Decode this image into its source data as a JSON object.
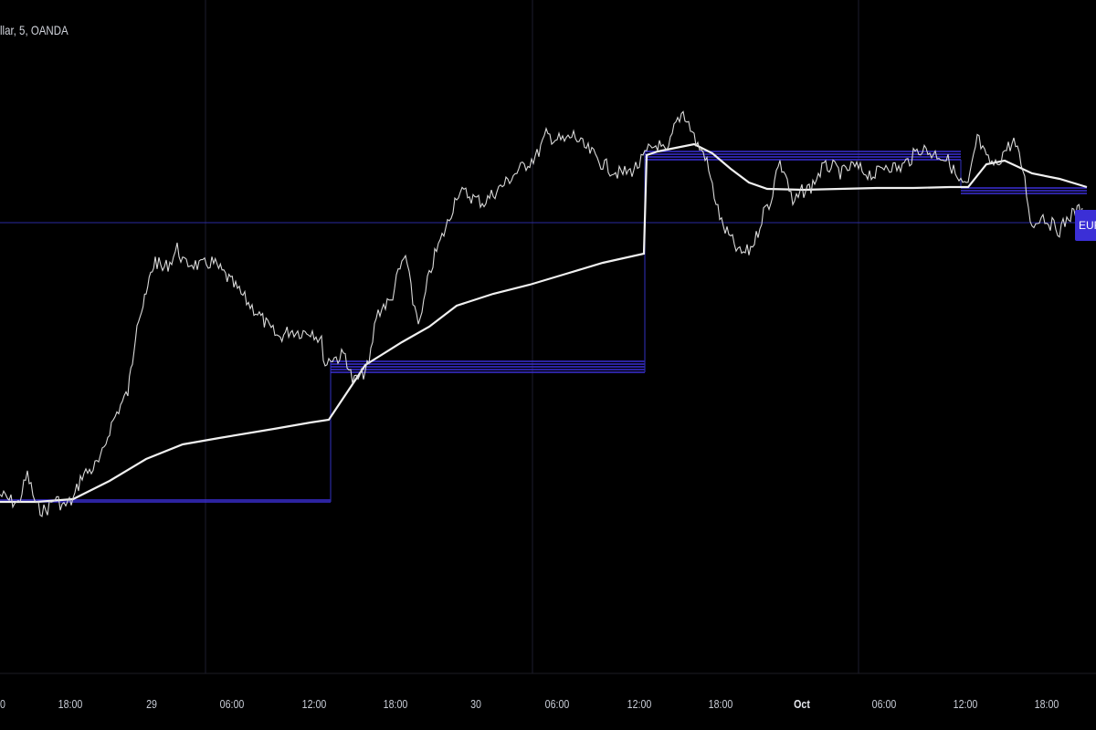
{
  "header": {
    "symbol_text": "llar, 5, OANDA"
  },
  "price_tag": {
    "label": "EUR"
  },
  "colors": {
    "background": "#000000",
    "price_line": "#d9d9d9",
    "ma_line": "#f0f0f0",
    "levels": "#3b2fd6",
    "grid": "#1c1c2e",
    "axis_text": "#c8ccd6"
  },
  "chart_data": {
    "type": "line",
    "title": "",
    "xlabel": "",
    "ylabel": "",
    "grid": true,
    "x_ticks": [
      {
        "label": "0",
        "bold": false
      },
      {
        "label": "18:00",
        "bold": false
      },
      {
        "label": "29",
        "bold": false
      },
      {
        "label": "06:00",
        "bold": false
      },
      {
        "label": "12:00",
        "bold": false
      },
      {
        "label": "18:00",
        "bold": false
      },
      {
        "label": "30",
        "bold": false
      },
      {
        "label": "06:00",
        "bold": false
      },
      {
        "label": "12:00",
        "bold": false
      },
      {
        "label": "18:00",
        "bold": false
      },
      {
        "label": "Oct",
        "bold": true
      },
      {
        "label": "06:00",
        "bold": false
      },
      {
        "label": "12:00",
        "bold": false
      },
      {
        "label": "18:00",
        "bold": false
      }
    ],
    "series": [
      {
        "role": "price",
        "points": [
          [
            0,
            542
          ],
          [
            10,
            548
          ],
          [
            20,
            552
          ],
          [
            30,
            520
          ],
          [
            40,
            556
          ],
          [
            50,
            560
          ],
          [
            60,
            546
          ],
          [
            70,
            555
          ],
          [
            80,
            548
          ],
          [
            90,
            520
          ],
          [
            100,
            515
          ],
          [
            110,
            505
          ],
          [
            120,
            470
          ],
          [
            130,
            448
          ],
          [
            140,
            430
          ],
          [
            145,
            395
          ],
          [
            150,
            350
          ],
          [
            155,
            340
          ],
          [
            160,
            325
          ],
          [
            165,
            300
          ],
          [
            170,
            285
          ],
          [
            178,
            295
          ],
          [
            186,
            288
          ],
          [
            194,
            272
          ],
          [
            202,
            290
          ],
          [
            210,
            288
          ],
          [
            220,
            292
          ],
          [
            232,
            287
          ],
          [
            245,
            300
          ],
          [
            258,
            315
          ],
          [
            270,
            330
          ],
          [
            282,
            343
          ],
          [
            295,
            360
          ],
          [
            305,
            370
          ],
          [
            318,
            362
          ],
          [
            330,
            364
          ],
          [
            342,
            362
          ],
          [
            352,
            375
          ],
          [
            356,
            400
          ],
          [
            362,
            392
          ],
          [
            370,
            392
          ],
          [
            378,
            388
          ],
          [
            386,
            418
          ],
          [
            394,
            414
          ],
          [
            404,
            400
          ],
          [
            412,
            345
          ],
          [
            420,
            335
          ],
          [
            428,
            330
          ],
          [
            436,
            300
          ],
          [
            444,
            280
          ],
          [
            452,
            330
          ],
          [
            460,
            355
          ],
          [
            468,
            310
          ],
          [
            476,
            280
          ],
          [
            484,
            260
          ],
          [
            492,
            240
          ],
          [
            500,
            212
          ],
          [
            510,
            212
          ],
          [
            520,
            218
          ],
          [
            530,
            222
          ],
          [
            540,
            212
          ],
          [
            552,
            202
          ],
          [
            564,
            190
          ],
          [
            576,
            180
          ],
          [
            588,
            170
          ],
          [
            598,
            148
          ],
          [
            608,
            152
          ],
          [
            618,
            155
          ],
          [
            628,
            148
          ],
          [
            638,
            160
          ],
          [
            648,
            168
          ],
          [
            658,
            178
          ],
          [
            668,
            185
          ],
          [
            678,
            190
          ],
          [
            690,
            188
          ],
          [
            700,
            180
          ],
          [
            710,
            165
          ],
          [
            720,
            158
          ],
          [
            730,
            170
          ],
          [
            740,
            135
          ],
          [
            748,
            122
          ],
          [
            756,
            140
          ],
          [
            764,
            160
          ],
          [
            772,
            170
          ],
          [
            780,
            205
          ],
          [
            790,
            245
          ],
          [
            800,
            262
          ],
          [
            810,
            278
          ],
          [
            820,
            275
          ],
          [
            828,
            260
          ],
          [
            836,
            232
          ],
          [
            844,
            220
          ],
          [
            852,
            178
          ],
          [
            860,
            190
          ],
          [
            868,
            225
          ],
          [
            878,
            210
          ],
          [
            888,
            205
          ],
          [
            900,
            185
          ],
          [
            910,
            182
          ],
          [
            922,
            190
          ],
          [
            934,
            182
          ],
          [
            946,
            188
          ],
          [
            958,
            192
          ],
          [
            970,
            180
          ],
          [
            984,
            185
          ],
          [
            996,
            175
          ],
          [
            1008,
            162
          ],
          [
            1020,
            168
          ],
          [
            1030,
            170
          ],
          [
            1040,
            178
          ],
          [
            1050,
            200
          ],
          [
            1060,
            205
          ],
          [
            1070,
            150
          ],
          [
            1080,
            175
          ],
          [
            1090,
            182
          ],
          [
            1100,
            165
          ],
          [
            1110,
            155
          ],
          [
            1120,
            185
          ],
          [
            1130,
            250
          ],
          [
            1140,
            235
          ],
          [
            1150,
            245
          ],
          [
            1160,
            252
          ],
          [
            1172,
            236
          ],
          [
            1185,
            228
          ]
        ]
      },
      {
        "role": "moving-average",
        "points": [
          [
            0,
            550
          ],
          [
            40,
            550
          ],
          [
            80,
            547
          ],
          [
            120,
            527
          ],
          [
            160,
            503
          ],
          [
            200,
            487
          ],
          [
            240,
            480
          ],
          [
            300,
            470
          ],
          [
            340,
            463
          ],
          [
            360,
            460
          ],
          [
            400,
            400
          ],
          [
            440,
            375
          ],
          [
            470,
            358
          ],
          [
            500,
            335
          ],
          [
            540,
            322
          ],
          [
            580,
            312
          ],
          [
            620,
            300
          ],
          [
            660,
            288
          ],
          [
            705,
            278
          ],
          [
            708,
            170
          ],
          [
            720,
            166
          ],
          [
            740,
            162
          ],
          [
            760,
            158
          ],
          [
            780,
            168
          ],
          [
            800,
            185
          ],
          [
            820,
            200
          ],
          [
            840,
            207
          ],
          [
            880,
            208
          ],
          [
            920,
            207
          ],
          [
            960,
            206
          ],
          [
            1000,
            206
          ],
          [
            1040,
            205
          ],
          [
            1060,
            205
          ],
          [
            1080,
            180
          ],
          [
            1100,
            176
          ],
          [
            1130,
            190
          ],
          [
            1160,
            196
          ],
          [
            1190,
            205
          ]
        ]
      }
    ],
    "level_lines": [
      {
        "x1": 0,
        "x2": 362,
        "ys": [
          548,
          550
        ]
      },
      {
        "x1": 362,
        "x2": 706,
        "ys": [
          396,
          399,
          402,
          405,
          408
        ]
      },
      {
        "x1": 706,
        "x2": 1052,
        "ys": [
          166,
          169,
          172,
          175
        ]
      },
      {
        "x1": 1052,
        "x2": 1190,
        "ys": [
          206,
          209,
          212
        ]
      }
    ],
    "horizontal_marker_y": 244
  }
}
